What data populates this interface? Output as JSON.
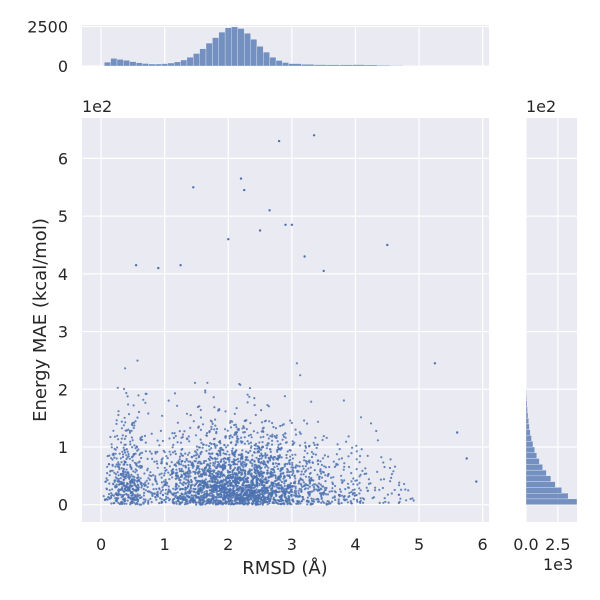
{
  "chart_data": {
    "type": "scatter",
    "subtype": "jointplot",
    "xlabel": "RMSD (Å)",
    "ylabel": "Energy MAE (kcal/mol)",
    "xlim": [
      -0.3,
      6.1
    ],
    "ylim": [
      -0.3,
      6.7
    ],
    "y_scale_label": "1e2",
    "x_ticks": [
      "0",
      "1",
      "2",
      "3",
      "4",
      "5",
      "6"
    ],
    "y_ticks": [
      "0",
      "1",
      "2",
      "3",
      "4",
      "5",
      "6"
    ],
    "grid": true,
    "color": "#4c72b0",
    "density_clusters": [
      {
        "x_center": 0.4,
        "y_center": 0.6,
        "x_spread": 0.15,
        "y_spread": 0.6,
        "weight": 0.12
      },
      {
        "x_center": 2.1,
        "y_center": 0.6,
        "x_spread": 0.7,
        "y_spread": 0.55,
        "weight": 0.82
      },
      {
        "x_center": 4.0,
        "y_center": 0.5,
        "x_spread": 0.5,
        "y_spread": 0.5,
        "weight": 0.06
      }
    ],
    "outliers": [
      {
        "x": 2.0,
        "y": 4.6
      },
      {
        "x": 2.2,
        "y": 5.65
      },
      {
        "x": 2.25,
        "y": 5.45
      },
      {
        "x": 2.8,
        "y": 6.3
      },
      {
        "x": 3.35,
        "y": 6.4
      },
      {
        "x": 1.45,
        "y": 5.5
      },
      {
        "x": 2.9,
        "y": 4.85
      },
      {
        "x": 3.0,
        "y": 4.85
      },
      {
        "x": 4.5,
        "y": 4.5
      },
      {
        "x": 2.65,
        "y": 5.1
      },
      {
        "x": 1.25,
        "y": 4.15
      },
      {
        "x": 0.9,
        "y": 4.1
      },
      {
        "x": 0.55,
        "y": 4.15
      },
      {
        "x": 5.6,
        "y": 1.25
      },
      {
        "x": 5.75,
        "y": 0.8
      },
      {
        "x": 5.9,
        "y": 0.4
      },
      {
        "x": 5.25,
        "y": 2.45
      },
      {
        "x": 3.2,
        "y": 4.3
      },
      {
        "x": 3.5,
        "y": 4.05
      },
      {
        "x": 2.5,
        "y": 4.75
      }
    ],
    "marginal_x": {
      "ylim": [
        0,
        2600
      ],
      "y_ticks": [
        "0",
        "2500"
      ],
      "bins": [
        {
          "x": 0.1,
          "count": 250
        },
        {
          "x": 0.2,
          "count": 480
        },
        {
          "x": 0.3,
          "count": 420
        },
        {
          "x": 0.4,
          "count": 360
        },
        {
          "x": 0.5,
          "count": 280
        },
        {
          "x": 0.6,
          "count": 210
        },
        {
          "x": 0.7,
          "count": 160
        },
        {
          "x": 0.8,
          "count": 130
        },
        {
          "x": 0.9,
          "count": 130
        },
        {
          "x": 1.0,
          "count": 150
        },
        {
          "x": 1.1,
          "count": 190
        },
        {
          "x": 1.2,
          "count": 260
        },
        {
          "x": 1.3,
          "count": 380
        },
        {
          "x": 1.4,
          "count": 560
        },
        {
          "x": 1.5,
          "count": 790
        },
        {
          "x": 1.6,
          "count": 1100
        },
        {
          "x": 1.7,
          "count": 1450
        },
        {
          "x": 1.8,
          "count": 1800
        },
        {
          "x": 1.9,
          "count": 2150
        },
        {
          "x": 2.0,
          "count": 2420
        },
        {
          "x": 2.1,
          "count": 2480
        },
        {
          "x": 2.2,
          "count": 2380
        },
        {
          "x": 2.3,
          "count": 2080
        },
        {
          "x": 2.4,
          "count": 1700
        },
        {
          "x": 2.5,
          "count": 1250
        },
        {
          "x": 2.6,
          "count": 880
        },
        {
          "x": 2.7,
          "count": 560
        },
        {
          "x": 2.8,
          "count": 350
        },
        {
          "x": 2.9,
          "count": 220
        },
        {
          "x": 3.0,
          "count": 150
        },
        {
          "x": 3.2,
          "count": 110
        },
        {
          "x": 3.4,
          "count": 90
        },
        {
          "x": 3.6,
          "count": 80
        },
        {
          "x": 3.8,
          "count": 85
        },
        {
          "x": 4.0,
          "count": 90
        },
        {
          "x": 4.2,
          "count": 70
        },
        {
          "x": 4.4,
          "count": 50
        },
        {
          "x": 4.6,
          "count": 30
        },
        {
          "x": 4.8,
          "count": 15
        },
        {
          "x": 5.0,
          "count": 5
        }
      ]
    },
    "marginal_y": {
      "scale_label": "1e3",
      "x_ticks": [
        "0.0",
        "2.5"
      ],
      "xlim": [
        0,
        4
      ],
      "bins": [
        {
          "y": 0.05,
          "count": 4.0
        },
        {
          "y": 0.15,
          "count": 3.3
        },
        {
          "y": 0.25,
          "count": 2.8
        },
        {
          "y": 0.35,
          "count": 2.3
        },
        {
          "y": 0.45,
          "count": 1.95
        },
        {
          "y": 0.55,
          "count": 1.6
        },
        {
          "y": 0.65,
          "count": 1.3
        },
        {
          "y": 0.75,
          "count": 1.05
        },
        {
          "y": 0.85,
          "count": 0.85
        },
        {
          "y": 0.95,
          "count": 0.68
        },
        {
          "y": 1.05,
          "count": 0.55
        },
        {
          "y": 1.15,
          "count": 0.43
        },
        {
          "y": 1.25,
          "count": 0.34
        },
        {
          "y": 1.35,
          "count": 0.27
        },
        {
          "y": 1.45,
          "count": 0.21
        },
        {
          "y": 1.55,
          "count": 0.16
        },
        {
          "y": 1.65,
          "count": 0.12
        },
        {
          "y": 1.75,
          "count": 0.09
        },
        {
          "y": 1.85,
          "count": 0.06
        },
        {
          "y": 1.95,
          "count": 0.04
        }
      ]
    }
  }
}
